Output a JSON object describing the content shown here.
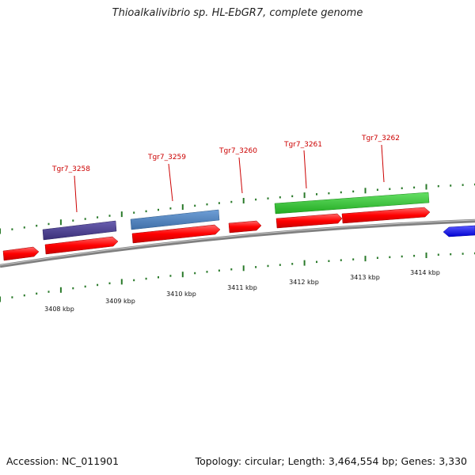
{
  "header": {
    "title": "Thioalkalivibrio sp. HL-EbGR7, complete genome"
  },
  "footer": {
    "accession": "Accession: NC_011901",
    "summary": "Topology: circular; Length: 3,464,554 bp; Genes: 3,330"
  },
  "scale": {
    "ticks": [
      "3408 kbp",
      "3409 kbp",
      "3410 kbp",
      "3411 kbp",
      "3412 kbp",
      "3413 kbp",
      "3414 kbp"
    ]
  },
  "genes": {
    "labels": [
      "Tgr7_3258",
      "Tgr7_3259",
      "Tgr7_3260",
      "Tgr7_3261",
      "Tgr7_3262"
    ]
  },
  "colors": {
    "cds": "#ff0000",
    "cds_dark": "#cc0000",
    "feature_purple": "#4b3f8c",
    "feature_steelblue": "#4f81bd",
    "feature_green": "#33cc33",
    "reverse_blue": "#1a1aff",
    "backbone": "#808080",
    "tick_green": "#2a7a2a",
    "label_red": "#cc0000"
  }
}
